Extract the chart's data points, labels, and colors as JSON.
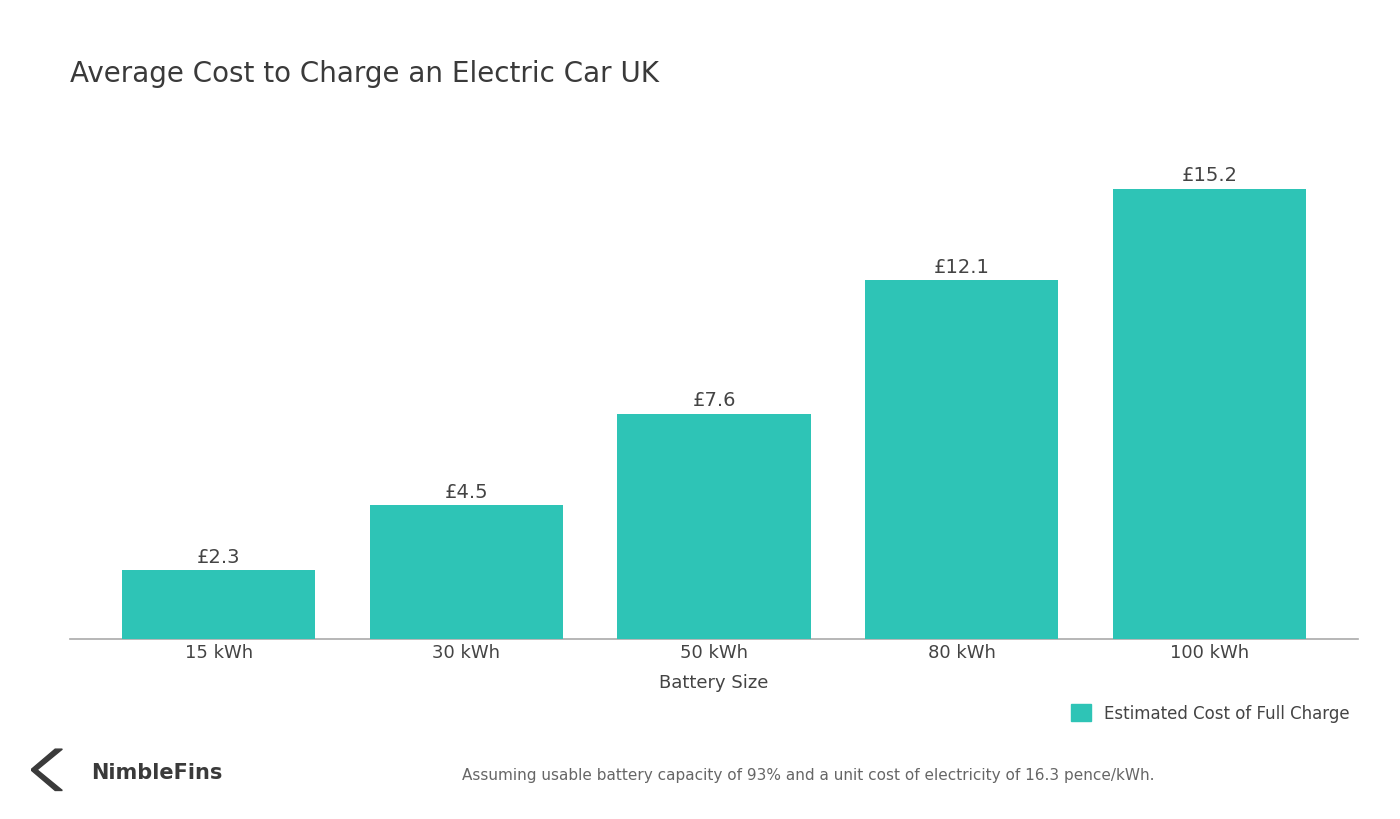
{
  "title": "Average Cost to Charge an Electric Car UK",
  "categories": [
    "15 kWh",
    "30 kWh",
    "50 kWh",
    "80 kWh",
    "100 kWh"
  ],
  "values": [
    2.3,
    4.5,
    7.6,
    12.1,
    15.2
  ],
  "labels": [
    "£2.3",
    "£4.5",
    "£7.6",
    "£12.1",
    "£15.2"
  ],
  "bar_color": "#2ec4b6",
  "background_color": "#ffffff",
  "title_color": "#3a3a3a",
  "label_color": "#444444",
  "xlabel": "Battery Size",
  "ylabel": "",
  "ylim": [
    0,
    18
  ],
  "title_fontsize": 20,
  "label_fontsize": 14,
  "tick_fontsize": 13,
  "xlabel_fontsize": 13,
  "legend_label": "Estimated Cost of Full Charge",
  "footnote": "Assuming usable battery capacity of 93% and a unit cost of electricity of 16.3 pence/kWh.",
  "nimblefins_text": "NimbleFins",
  "bar_width": 0.78
}
